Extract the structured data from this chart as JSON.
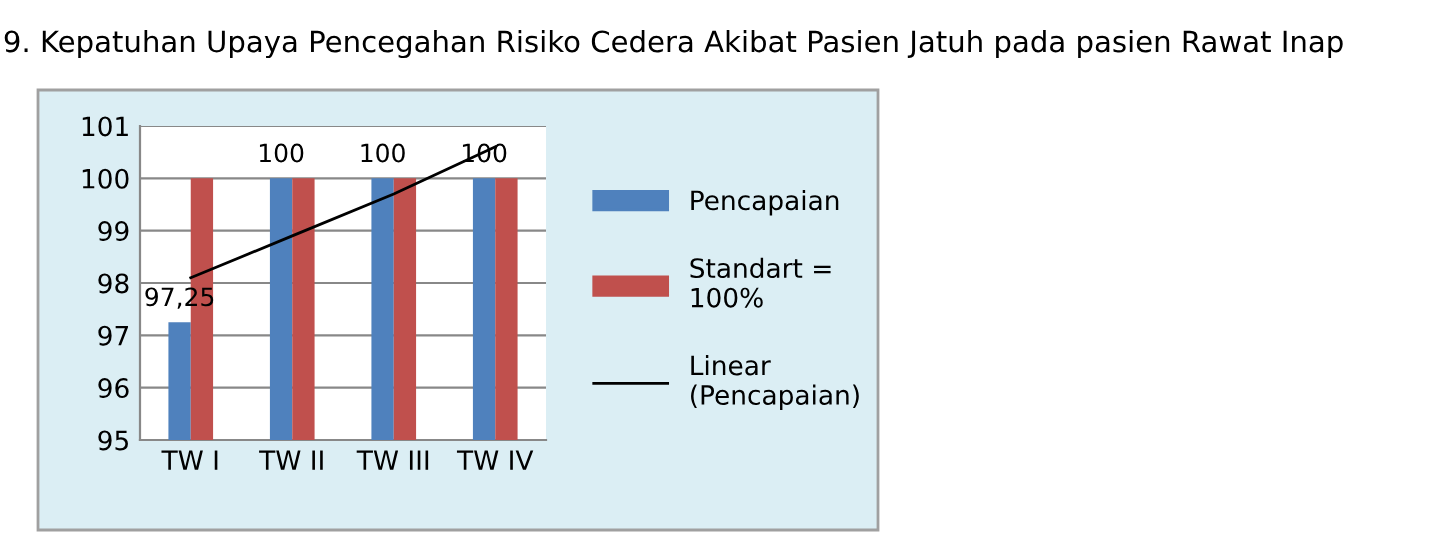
{
  "chart_data": {
    "type": "bar",
    "title": "9. Kepatuhan Upaya Pencegahan Risiko Cedera Akibat Pasien Jatuh pada pasien Rawat Inap",
    "categories": [
      "TW I",
      "TW II",
      "TW III",
      "TW IV"
    ],
    "series": [
      {
        "name": "Pencapaian",
        "color": "#4f81bd",
        "values": [
          97.25,
          100,
          100,
          100
        ],
        "value_labels": [
          "97,25",
          "100",
          "100",
          "100"
        ]
      },
      {
        "name": "Standart =\n100%",
        "color": "#c0504d",
        "values": [
          100,
          100,
          100,
          100
        ]
      },
      {
        "name": "Linear\n(Pencapaian)",
        "type": "line",
        "color": "#000000",
        "values": [
          98.1,
          98.9,
          99.7,
          100.6
        ]
      }
    ],
    "ylim": [
      95,
      101
    ],
    "yticks": [
      95,
      96,
      97,
      98,
      99,
      100,
      101
    ],
    "grid": "y",
    "legend": "right"
  }
}
